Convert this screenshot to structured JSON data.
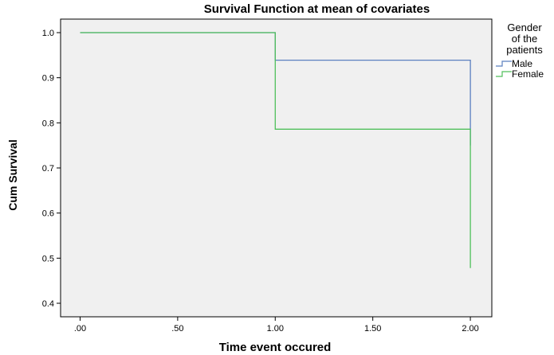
{
  "chart_data": {
    "type": "line",
    "step": true,
    "title": "Survival Function at mean of covariates",
    "xlabel": "Time event occured",
    "ylabel": "Cum Survival",
    "xlim": [
      -0.1,
      2.11
    ],
    "ylim": [
      0.37,
      1.03
    ],
    "xticks": [
      0.0,
      0.5,
      1.0,
      1.5,
      2.0
    ],
    "xtick_labels": [
      ".00",
      ".50",
      "1.00",
      "1.50",
      "2.00"
    ],
    "yticks": [
      0.4,
      0.5,
      0.6,
      0.7,
      0.8,
      0.9,
      1.0
    ],
    "ytick_labels": [
      "0.4",
      "0.5",
      "0.6",
      "0.7",
      "0.8",
      "0.9",
      "1.0"
    ],
    "grid": false,
    "plot_background": "#f0f0f0",
    "legend": {
      "title_lines": [
        "Gender",
        "of the",
        "patients"
      ],
      "position": "right"
    },
    "series": [
      {
        "name": "Male",
        "color": "#5b7fbf",
        "x": [
          0,
          1,
          1,
          2,
          2
        ],
        "y": [
          1.0,
          1.0,
          0.939,
          0.939,
          0.75
        ]
      },
      {
        "name": "Female",
        "color": "#4fbf5b",
        "x": [
          0,
          1,
          1,
          2,
          2
        ],
        "y": [
          1.0,
          1.0,
          0.786,
          0.786,
          0.478
        ]
      }
    ]
  }
}
